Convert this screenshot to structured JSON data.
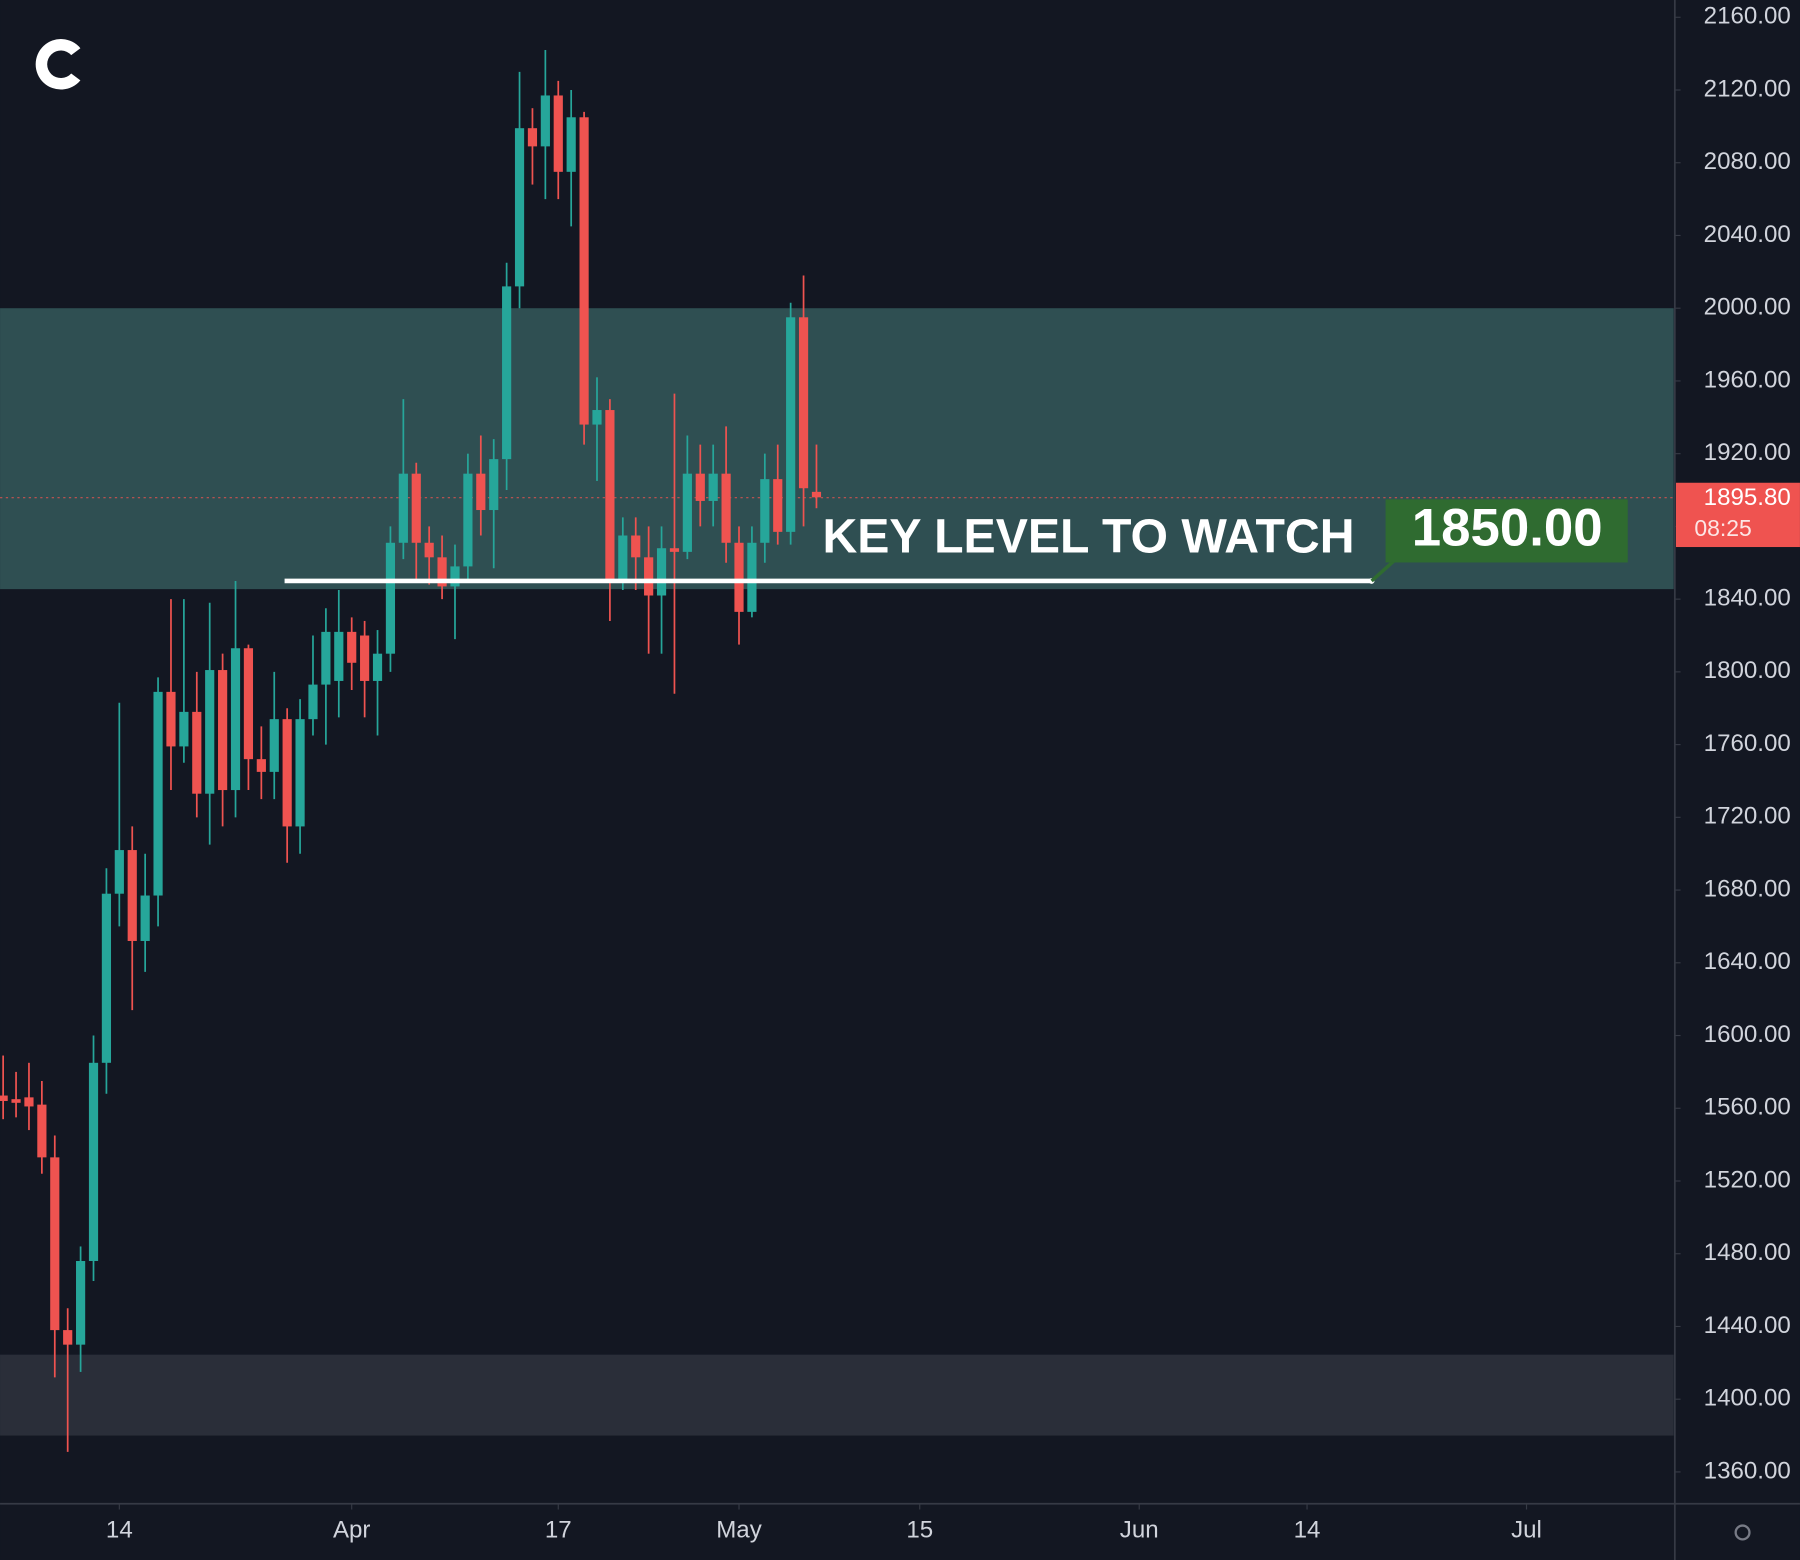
{
  "chart_data": {
    "type": "candlestick",
    "up_color": "#26a69a",
    "down_color": "#ef5350",
    "x": [
      0,
      1,
      2,
      3,
      4,
      5,
      6,
      7,
      8,
      9,
      10,
      11,
      12,
      13,
      14,
      15,
      16,
      17,
      18,
      19,
      20,
      21,
      22,
      23,
      24,
      25,
      26,
      27,
      28,
      29,
      30,
      31,
      32,
      33,
      34,
      35,
      36,
      37,
      38,
      39,
      40,
      41,
      42,
      43,
      44,
      45,
      46,
      47,
      48,
      49,
      50,
      51,
      52,
      53,
      54,
      55,
      56,
      57,
      58,
      59,
      60,
      61,
      62,
      63
    ],
    "open": [
      1567,
      1565,
      1566,
      1562,
      1533,
      1438,
      1430,
      1476,
      1585,
      1678,
      1702,
      1652,
      1677,
      1789,
      1759,
      1778,
      1733,
      1801,
      1735,
      1813,
      1752,
      1745,
      1774,
      1715,
      1774,
      1793,
      1795,
      1822,
      1820,
      1795,
      1810,
      1871,
      1909,
      1871,
      1863,
      1847,
      1858,
      1909,
      1889,
      1917,
      2012,
      2099,
      2089,
      2117,
      2075,
      2105,
      1936,
      1944,
      1851,
      1875,
      1863,
      1842,
      1868,
      1866,
      1909,
      1894,
      1909,
      1871,
      1833,
      1871,
      1906,
      1877,
      1995,
      1899
    ],
    "high": [
      1589,
      1580,
      1585,
      1575,
      1545,
      1450,
      1484,
      1600,
      1692,
      1783,
      1715,
      1700,
      1797,
      1840,
      1840,
      1800,
      1838,
      1810,
      1850,
      1815,
      1770,
      1800,
      1780,
      1785,
      1820,
      1835,
      1845,
      1830,
      1828,
      1823,
      1880,
      1950,
      1915,
      1880,
      1875,
      1870,
      1920,
      1930,
      1928,
      2025,
      2130,
      2110,
      2142,
      2125,
      2120,
      2108,
      1962,
      1950,
      1885,
      1885,
      1880,
      1880,
      1953,
      1930,
      1925,
      1925,
      1935,
      1880,
      1880,
      1920,
      1925,
      2003,
      2018,
      1925
    ],
    "low": [
      1554,
      1555,
      1548,
      1524,
      1412,
      1371,
      1415,
      1465,
      1568,
      1660,
      1614,
      1635,
      1660,
      1735,
      1750,
      1720,
      1705,
      1715,
      1720,
      1735,
      1730,
      1730,
      1695,
      1700,
      1765,
      1760,
      1775,
      1790,
      1775,
      1765,
      1800,
      1862,
      1850,
      1848,
      1840,
      1818,
      1850,
      1875,
      1857,
      1900,
      2000,
      2068,
      2060,
      2060,
      2045,
      1925,
      1905,
      1828,
      1845,
      1845,
      1810,
      1810,
      1788,
      1862,
      1880,
      1880,
      1860,
      1815,
      1830,
      1860,
      1870,
      1870,
      1880,
      1890
    ],
    "close": [
      1564,
      1563,
      1561,
      1533,
      1438,
      1430,
      1476,
      1585,
      1678,
      1702,
      1652,
      1677,
      1789,
      1759,
      1778,
      1733,
      1801,
      1735,
      1813,
      1752,
      1745,
      1774,
      1715,
      1774,
      1793,
      1822,
      1822,
      1805,
      1795,
      1810,
      1871,
      1909,
      1871,
      1863,
      1847,
      1858,
      1909,
      1889,
      1917,
      2012,
      2099,
      2089,
      2117,
      2075,
      2105,
      1936,
      1944,
      1851,
      1875,
      1863,
      1842,
      1868,
      1866,
      1909,
      1894,
      1909,
      1871,
      1833,
      1871,
      1906,
      1877,
      1995,
      1901,
      1896
    ],
    "xlim": [
      -0.24,
      129.4
    ],
    "xticks": [
      {
        "value": 9,
        "label": "14"
      },
      {
        "value": 27,
        "label": "Apr"
      },
      {
        "value": 43,
        "label": "17"
      },
      {
        "value": 57,
        "label": "May"
      },
      {
        "value": 71,
        "label": "15"
      },
      {
        "value": 88,
        "label": "Jun"
      },
      {
        "value": 101,
        "label": "14"
      },
      {
        "value": 118,
        "label": "Jul"
      }
    ],
    "ylim": [
      1342.5,
      2169.5
    ],
    "yticks": [
      {
        "value": 1360,
        "label": "1360.00"
      },
      {
        "value": 1400,
        "label": "1400.00"
      },
      {
        "value": 1440,
        "label": "1440.00"
      },
      {
        "value": 1480,
        "label": "1480.00"
      },
      {
        "value": 1520,
        "label": "1520.00"
      },
      {
        "value": 1560,
        "label": "1560.00"
      },
      {
        "value": 1600,
        "label": "1600.00"
      },
      {
        "value": 1640,
        "label": "1640.00"
      },
      {
        "value": 1680,
        "label": "1680.00"
      },
      {
        "value": 1720,
        "label": "1720.00"
      },
      {
        "value": 1760,
        "label": "1760.00"
      },
      {
        "value": 1800,
        "label": "1800.00"
      },
      {
        "value": 1840,
        "label": "1840.00"
      },
      {
        "value": 1880,
        "label": "1880.00"
      },
      {
        "value": 1920,
        "label": "1920.00"
      },
      {
        "value": 1960,
        "label": "1960.00"
      },
      {
        "value": 2000,
        "label": "2000.00"
      },
      {
        "value": 2040,
        "label": "2040.00"
      },
      {
        "value": 2080,
        "label": "2080.00"
      },
      {
        "value": 2120,
        "label": "2120.00"
      },
      {
        "value": 2160,
        "label": "2160.00"
      }
    ],
    "zones": [
      {
        "from": 1845.5,
        "to": 2000,
        "color": "#2f4f52"
      },
      {
        "from": 1380,
        "to": 1424.5,
        "color": "#2a2e39"
      }
    ],
    "key_level": {
      "value": 1850,
      "label": "1850.00",
      "text": "KEY LEVEL TO WATCH",
      "x_start": 21.8,
      "x_end": 106,
      "color": "#2f6b30"
    },
    "last_price": {
      "value": 1895.8,
      "label": "1895.80",
      "countdown": "08:25",
      "color": "#ef5350"
    }
  }
}
